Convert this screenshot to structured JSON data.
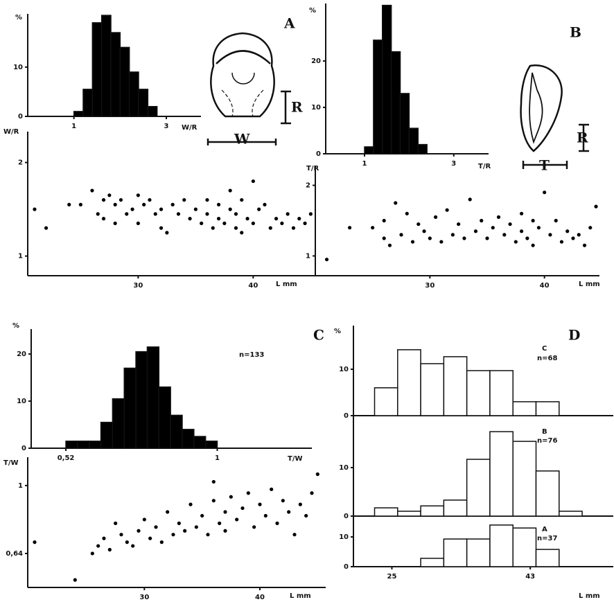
{
  "chart_data": [
    {
      "type": "histogram",
      "panel": "A",
      "ylabel": "%",
      "xlabel": "W/R",
      "annotations": [
        "R",
        "W"
      ],
      "color": "#000000",
      "bins": [
        1.0,
        1.2,
        1.4,
        1.6,
        1.8,
        2.0,
        2.2,
        2.4,
        2.6,
        2.8
      ],
      "values": [
        1,
        5.5,
        19,
        20.5,
        17,
        14,
        9,
        5.5,
        2
      ],
      "xlim": [
        0,
        3.75
      ],
      "xticks": [
        1,
        3
      ],
      "ylim": [
        0,
        20.8
      ],
      "yticks": [
        0,
        10
      ]
    },
    {
      "type": "scatter",
      "ylabel": "W/R",
      "xlabel": "L mm",
      "color": "#000000",
      "x": [
        21,
        22,
        24,
        25,
        26,
        26.5,
        27,
        27,
        27.5,
        28,
        28,
        28.5,
        29,
        29.5,
        30,
        30,
        30.5,
        31,
        31.5,
        32,
        32,
        32.5,
        33,
        33.5,
        34,
        34.5,
        35,
        35.5,
        36,
        36,
        36.5,
        37,
        37,
        37.5,
        38,
        38,
        38.5,
        38.5,
        39,
        39,
        39.5,
        40,
        40,
        40.5,
        41,
        41.5,
        42,
        42.5,
        43,
        43.5,
        44,
        44.5,
        45
      ],
      "values": [
        1.5,
        1.3,
        1.55,
        1.55,
        1.7,
        1.45,
        1.6,
        1.4,
        1.65,
        1.35,
        1.55,
        1.6,
        1.45,
        1.5,
        1.65,
        1.35,
        1.55,
        1.6,
        1.45,
        1.3,
        1.5,
        1.25,
        1.55,
        1.45,
        1.6,
        1.4,
        1.5,
        1.35,
        1.45,
        1.6,
        1.3,
        1.55,
        1.4,
        1.35,
        1.7,
        1.5,
        1.3,
        1.45,
        1.6,
        1.25,
        1.4,
        1.8,
        1.35,
        1.5,
        1.55,
        1.3,
        1.4,
        1.35,
        1.45,
        1.3,
        1.4,
        1.35,
        1.45
      ],
      "xlim": [
        20.4,
        45.4
      ],
      "xticks": [
        30,
        40
      ],
      "ylim": [
        0.79,
        2.33
      ],
      "yticks": [
        1,
        2
      ]
    },
    {
      "type": "histogram",
      "panel": "B",
      "ylabel": "%",
      "xlabel": "T/R",
      "annotations": [
        "R",
        "T"
      ],
      "color": "#000000",
      "bins": [
        1.0,
        1.2,
        1.4,
        1.6,
        1.8,
        2.0,
        2.2,
        2.4
      ],
      "values": [
        1.5,
        24.5,
        32,
        22,
        13,
        5.5,
        2
      ],
      "xlim": [
        0.13,
        3.78
      ],
      "xticks": [
        1,
        3
      ],
      "ylim": [
        0,
        32.4
      ],
      "yticks": [
        0,
        10,
        20
      ]
    },
    {
      "type": "scatter",
      "ylabel": "T/R",
      "xlabel": "L mm",
      "color": "#000000",
      "x": [
        21,
        23,
        25,
        26,
        26,
        26.5,
        27,
        27.5,
        28,
        28.5,
        29,
        29.5,
        30,
        30.5,
        31,
        31.5,
        32,
        32.5,
        33,
        33.5,
        34,
        34.5,
        35,
        35.5,
        36,
        36.5,
        37,
        37.5,
        38,
        38,
        38.5,
        39,
        39,
        39.5,
        40,
        40.5,
        41,
        41.5,
        42,
        42.5,
        43,
        43.5,
        44,
        44.5
      ],
      "values": [
        0.95,
        1.4,
        1.4,
        1.25,
        1.5,
        1.15,
        1.75,
        1.3,
        1.6,
        1.2,
        1.45,
        1.35,
        1.25,
        1.55,
        1.2,
        1.65,
        1.3,
        1.45,
        1.25,
        1.8,
        1.35,
        1.5,
        1.25,
        1.4,
        1.55,
        1.3,
        1.45,
        1.2,
        1.6,
        1.35,
        1.25,
        1.5,
        1.15,
        1.4,
        1.9,
        1.3,
        1.5,
        1.2,
        1.35,
        1.25,
        1.3,
        1.15,
        1.4,
        1.7
      ],
      "xlim": [
        20,
        44.8
      ],
      "xticks": [
        30,
        40
      ],
      "ylim": [
        0.72,
        2.27
      ],
      "yticks": [
        1,
        2
      ]
    },
    {
      "type": "histogram",
      "panel": "C",
      "ylabel": "%",
      "xlabel": "T/W",
      "annotations": [
        "n=133"
      ],
      "color": "#000000",
      "bins": [
        0.52,
        0.557,
        0.594,
        0.631,
        0.668,
        0.705,
        0.742,
        0.778,
        0.815,
        0.852,
        0.889,
        0.926,
        0.963,
        1.0
      ],
      "values": [
        1.5,
        1.5,
        1.5,
        5.5,
        10.5,
        17,
        20.5,
        21.5,
        13,
        7,
        4,
        2.5,
        1.5
      ],
      "xlim": [
        0.41,
        1.3
      ],
      "xticks": [
        {
          "value": 0.52,
          "label": "0,52"
        },
        1
      ],
      "ylim": [
        0,
        25.3
      ],
      "yticks": [
        0,
        10,
        20
      ]
    },
    {
      "type": "scatter",
      "ylabel": "T/W",
      "xlabel": "L mm",
      "color": "#000000",
      "x": [
        20.5,
        24,
        25.5,
        26,
        26.5,
        27,
        27.5,
        28,
        28.5,
        29,
        29.5,
        30,
        30.5,
        31,
        31.5,
        32,
        32.5,
        33,
        33.5,
        34,
        34.5,
        35,
        35.5,
        36,
        36,
        36.5,
        37,
        37,
        37.5,
        38,
        38.5,
        39,
        39.5,
        40,
        40.5,
        41,
        41.5,
        42,
        42.5,
        43,
        43.5,
        44,
        44.5,
        45
      ],
      "values": [
        0.7,
        0.5,
        0.64,
        0.68,
        0.72,
        0.66,
        0.8,
        0.74,
        0.7,
        0.68,
        0.76,
        0.82,
        0.72,
        0.78,
        0.7,
        0.86,
        0.74,
        0.8,
        0.76,
        0.9,
        0.78,
        0.84,
        0.74,
        0.92,
        1.02,
        0.8,
        0.86,
        0.76,
        0.94,
        0.82,
        0.88,
        0.96,
        0.78,
        0.9,
        0.84,
        0.98,
        0.8,
        0.92,
        0.86,
        0.74,
        0.9,
        0.84,
        0.96,
        1.06
      ],
      "xlim": [
        19.9,
        45.7
      ],
      "xticks": [
        30,
        40
      ],
      "ylim": [
        0.46,
        1.15
      ],
      "yticks": [
        {
          "value": 0.64,
          "label": "0,64"
        },
        1
      ]
    },
    {
      "type": "histogram",
      "panel": "D",
      "ylabel": "%",
      "annotations": [
        "C",
        "n=68"
      ],
      "color": "#ffffff",
      "bins": [
        22.75,
        25.75,
        28.75,
        31.75,
        34.75,
        37.75,
        40.75,
        43.75,
        46.75
      ],
      "values": [
        6,
        14.2,
        11.2,
        12.7,
        9.7,
        9.7,
        3,
        3
      ],
      "xlim": [
        20,
        53.8
      ],
      "ylim": [
        0,
        19.4
      ],
      "yticks": [
        0,
        10
      ]
    },
    {
      "type": "histogram",
      "annotations": [
        "B",
        "n=76"
      ],
      "color": "#ffffff",
      "bins": [
        22.75,
        25.75,
        28.75,
        31.75,
        34.75,
        37.75,
        40.75,
        43.75,
        46.75,
        49.75
      ],
      "values": [
        1.7,
        1,
        2.1,
        3.3,
        11.7,
        17.4,
        15.4,
        9.3,
        1
      ],
      "xlim": [
        20,
        53.8
      ],
      "ylim": [
        0,
        20.7
      ],
      "yticks": [
        0,
        10
      ]
    },
    {
      "type": "histogram",
      "xlabel": "L mm",
      "annotations": [
        "A",
        "n=37"
      ],
      "color": "#ffffff",
      "bins": [
        28.75,
        31.75,
        34.75,
        37.75,
        40.75,
        43.75,
        46.75
      ],
      "values": [
        2.8,
        9.3,
        9.3,
        14,
        13,
        5.8
      ],
      "xlim": [
        20,
        53.8
      ],
      "xticks": [
        25,
        43
      ],
      "ylim": [
        0,
        17
      ],
      "yticks": [
        0,
        10
      ]
    }
  ]
}
